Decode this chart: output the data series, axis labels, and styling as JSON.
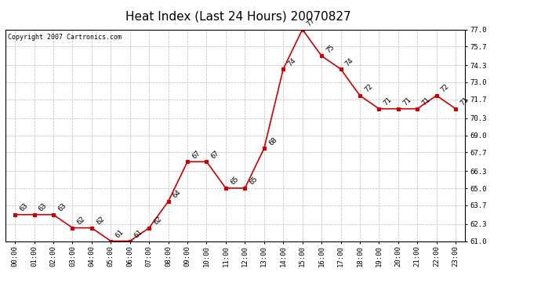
{
  "title": "Heat Index (Last 24 Hours) 20070827",
  "copyright": "Copyright 2007 Cartronics.com",
  "hours": [
    "00:00",
    "01:00",
    "02:00",
    "03:00",
    "04:00",
    "05:00",
    "06:00",
    "07:00",
    "08:00",
    "09:00",
    "10:00",
    "11:00",
    "12:00",
    "13:00",
    "14:00",
    "15:00",
    "16:00",
    "17:00",
    "18:00",
    "19:00",
    "20:00",
    "21:00",
    "22:00",
    "23:00"
  ],
  "values": [
    63,
    63,
    63,
    62,
    62,
    61,
    61,
    62,
    64,
    67,
    67,
    65,
    65,
    68,
    74,
    77,
    75,
    74,
    72,
    71,
    71,
    71,
    72,
    71
  ],
  "ylim_min": 61.0,
  "ylim_max": 77.0,
  "yticks": [
    61.0,
    62.3,
    63.7,
    65.0,
    66.3,
    67.7,
    69.0,
    70.3,
    71.7,
    73.0,
    74.3,
    75.7,
    77.0
  ],
  "line_color": "#cc0000",
  "marker_color": "#cc0000",
  "bg_color": "#ffffff",
  "grid_color": "#bbbbbb",
  "title_fontsize": 11,
  "tick_fontsize": 6.5,
  "annot_fontsize": 6.5,
  "copyright_fontsize": 6
}
